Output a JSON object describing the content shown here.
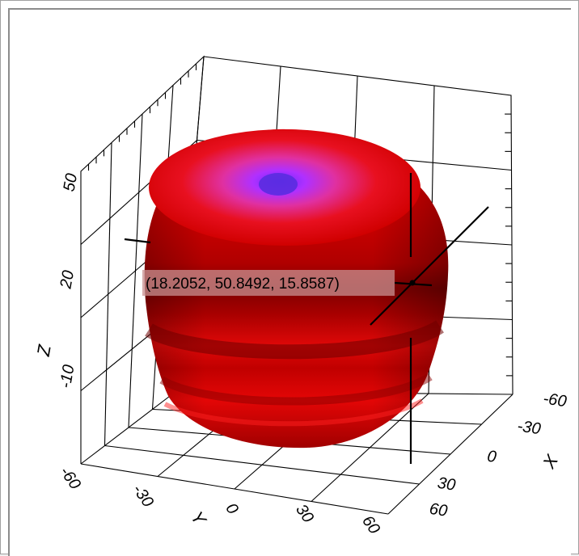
{
  "chart_data": {
    "type": "surface3d",
    "title": "",
    "axes": {
      "x": {
        "label": "X",
        "ticks": [
          "-60",
          "-30",
          "0",
          "30",
          "60"
        ],
        "range": [
          -60,
          60
        ]
      },
      "y": {
        "label": "Y",
        "ticks": [
          "-60",
          "-30",
          "0",
          "30",
          "60"
        ],
        "range": [
          -60,
          60
        ]
      },
      "z": {
        "label": "Z",
        "ticks": [
          "-10",
          "20",
          "50"
        ]
      }
    },
    "grid": true,
    "cursor": {
      "x": 18.2052,
      "y": 50.8492,
      "z": 15.8587,
      "label": "(18.2052, 50.8492, 15.8587)"
    },
    "colors": {
      "surface": "#e00000",
      "surface_dark": "#7a0000",
      "surface_top": "#9020ff",
      "tooltip_bg": "#c89090"
    }
  }
}
